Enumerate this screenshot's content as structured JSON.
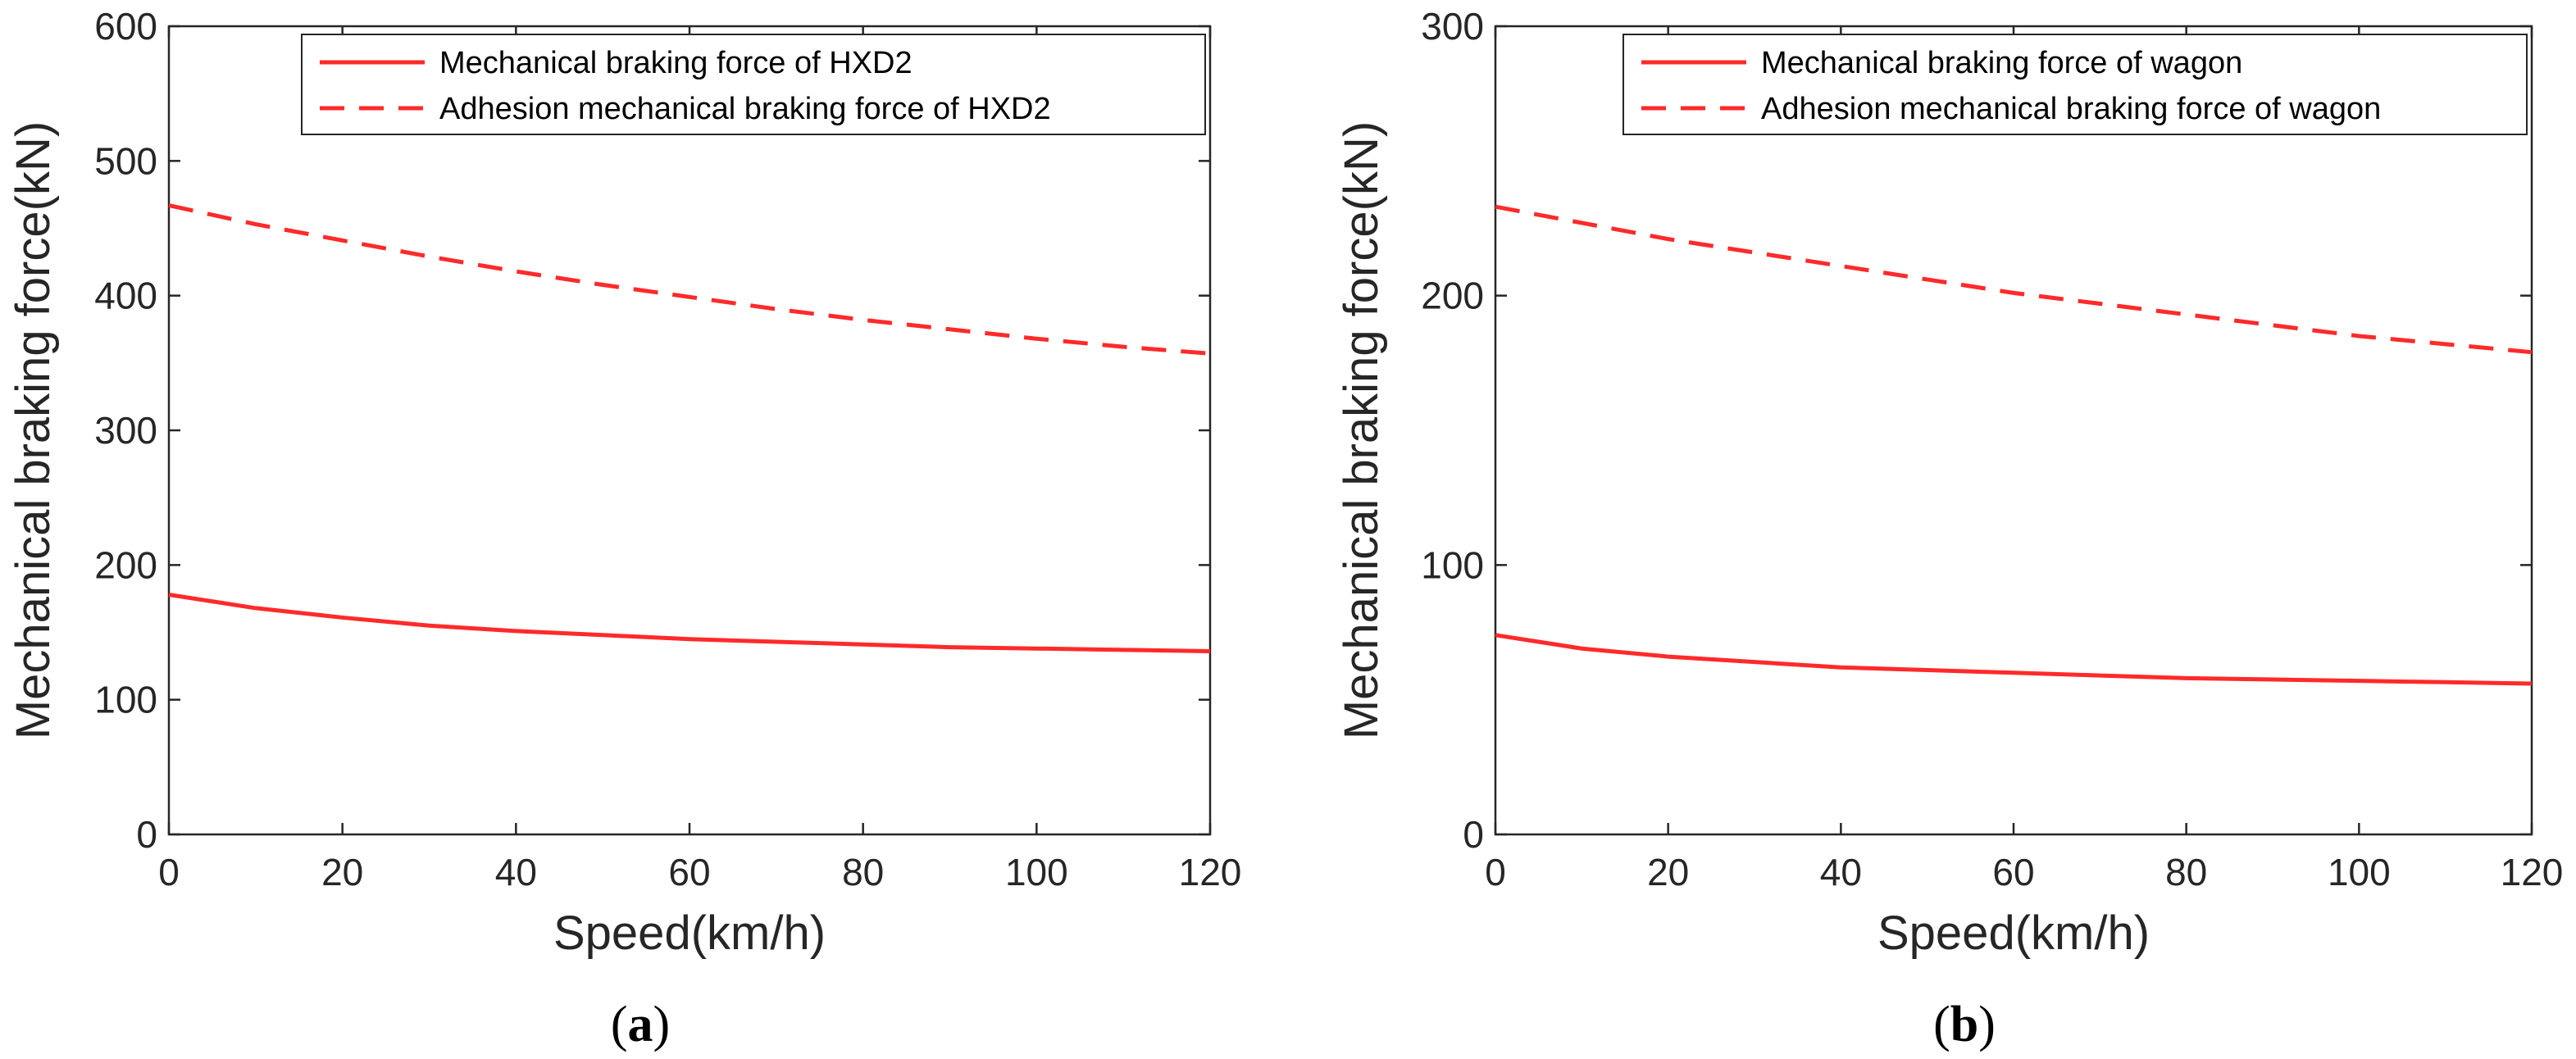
{
  "chart_data": [
    {
      "type": "line",
      "panel_label": "a",
      "caption_open": "(",
      "caption_close": ")",
      "xlabel": "Speed(km/h)",
      "ylabel": "Mechanical braking force(kN)",
      "xlim": [
        0,
        120
      ],
      "ylim": [
        0,
        600
      ],
      "xticks": [
        0,
        20,
        40,
        60,
        80,
        100,
        120
      ],
      "yticks": [
        0,
        100,
        200,
        300,
        400,
        500,
        600
      ],
      "grid": false,
      "legend": "top-right",
      "series": [
        {
          "name": "Mechanical braking force of HXD2",
          "style": "solid",
          "color": "#ff2a2a",
          "x": [
            0,
            10,
            20,
            30,
            40,
            50,
            60,
            70,
            80,
            90,
            100,
            110,
            120
          ],
          "y": [
            178,
            168,
            161,
            155,
            151,
            148,
            145,
            143,
            141,
            139,
            138,
            137,
            136
          ]
        },
        {
          "name": "Adhesion mechanical braking force of HXD2",
          "style": "dashed",
          "color": "#ff2a2a",
          "x": [
            0,
            10,
            20,
            30,
            40,
            50,
            60,
            70,
            80,
            90,
            100,
            110,
            120
          ],
          "y": [
            467,
            453,
            441,
            429,
            418,
            408,
            399,
            390,
            382,
            375,
            368,
            362,
            357
          ]
        }
      ]
    },
    {
      "type": "line",
      "panel_label": "b",
      "caption_open": "(",
      "caption_close": ")",
      "xlabel": "Speed(km/h)",
      "ylabel": "Mechanical braking force(kN)",
      "xlim": [
        0,
        120
      ],
      "ylim": [
        0,
        300
      ],
      "xticks": [
        0,
        20,
        40,
        60,
        80,
        100,
        120
      ],
      "yticks": [
        0,
        100,
        200,
        300
      ],
      "grid": false,
      "legend": "top-right",
      "series": [
        {
          "name": "Mechanical braking force of wagon",
          "style": "solid",
          "color": "#ff2a2a",
          "x": [
            0,
            10,
            20,
            30,
            40,
            50,
            60,
            70,
            80,
            90,
            100,
            110,
            120
          ],
          "y": [
            74,
            69,
            66,
            64,
            62,
            61,
            60,
            59,
            58,
            57.5,
            57,
            56.5,
            56
          ]
        },
        {
          "name": "Adhesion mechanical braking force of wagon",
          "style": "dashed",
          "color": "#ff2a2a",
          "x": [
            0,
            10,
            20,
            30,
            40,
            50,
            60,
            70,
            80,
            90,
            100,
            110,
            120
          ],
          "y": [
            233,
            227,
            221,
            216,
            211,
            206,
            201,
            197,
            193,
            189,
            185,
            182,
            179
          ]
        }
      ]
    }
  ]
}
